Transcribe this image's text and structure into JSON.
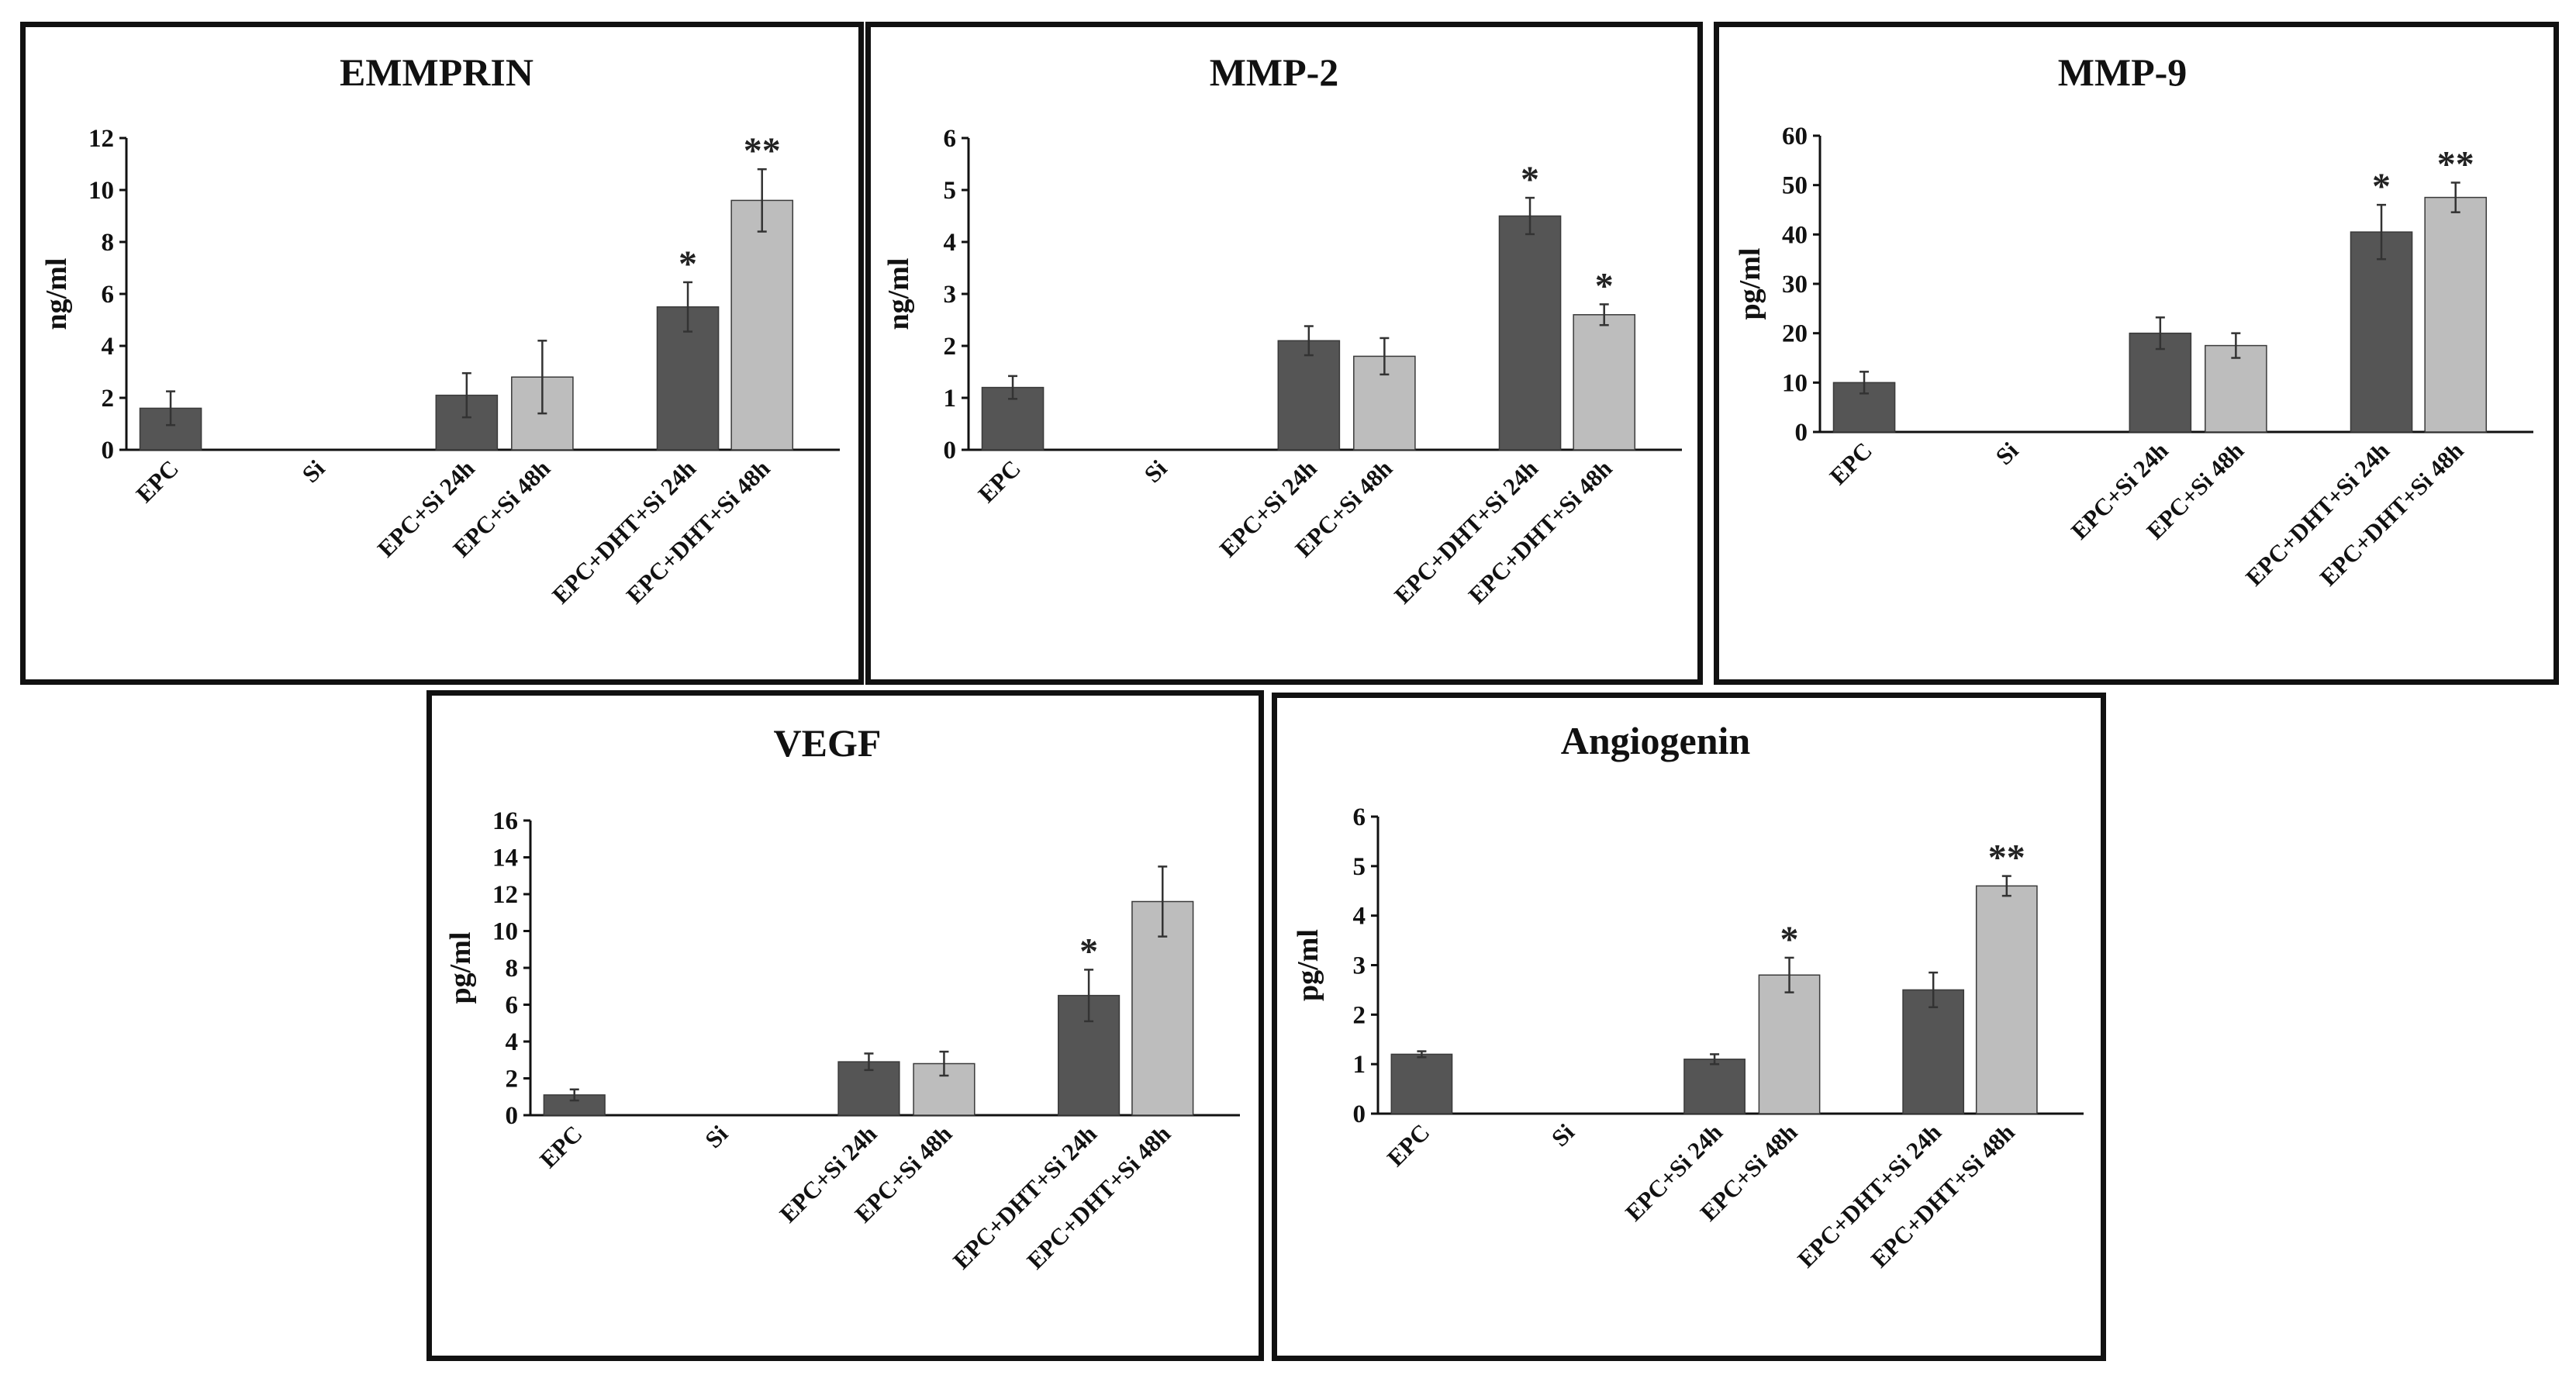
{
  "chart_data": [
    {
      "type": "bar",
      "title": "EMMPRIN",
      "ylabel": "ng/ml",
      "ylim": [
        0,
        12
      ],
      "yticks": [
        0,
        2,
        4,
        6,
        8,
        10,
        12
      ],
      "categories": [
        "EPC",
        "Si",
        "EPC+Si 24h",
        "EPC+Si 48h",
        "EPC+DHT+Si 24h",
        "EPC+DHT+Si 48h"
      ],
      "values": [
        1.6,
        0,
        2.1,
        2.8,
        5.5,
        9.6
      ],
      "errors": [
        0.65,
        0,
        0.85,
        1.4,
        0.95,
        1.2
      ],
      "significance": [
        "",
        "",
        "",
        "",
        "*",
        "**"
      ],
      "colors": [
        "#555555",
        "#555555",
        "#555555",
        "#bdbdbd",
        "#555555",
        "#bdbdbd"
      ]
    },
    {
      "type": "bar",
      "title": "MMP-2",
      "ylabel": "ng/ml",
      "ylim": [
        0,
        6
      ],
      "yticks": [
        0,
        1,
        2,
        3,
        4,
        5,
        6
      ],
      "categories": [
        "EPC",
        "Si",
        "EPC+Si 24h",
        "EPC+Si 48h",
        "EPC+DHT+Si 24h",
        "EPC+DHT+Si 48h"
      ],
      "values": [
        1.2,
        0,
        2.1,
        1.8,
        4.5,
        2.6
      ],
      "errors": [
        0.22,
        0,
        0.28,
        0.35,
        0.35,
        0.2
      ],
      "significance": [
        "",
        "",
        "",
        "",
        "*",
        "*"
      ],
      "colors": [
        "#555555",
        "#555555",
        "#555555",
        "#bdbdbd",
        "#555555",
        "#bdbdbd"
      ]
    },
    {
      "type": "bar",
      "title": "MMP-9",
      "ylabel": "pg/ml",
      "ylim": [
        0,
        60
      ],
      "yticks": [
        0,
        10,
        20,
        30,
        40,
        50,
        60
      ],
      "categories": [
        "EPC",
        "Si",
        "EPC+Si 24h",
        "EPC+Si 48h",
        "EPC+DHT+Si 24h",
        "EPC+DHT+Si 48h"
      ],
      "values": [
        10,
        0,
        20,
        17.5,
        40.5,
        47.5
      ],
      "errors": [
        2.2,
        0,
        3.2,
        2.5,
        5.5,
        3.0
      ],
      "significance": [
        "",
        "",
        "",
        "",
        "*",
        "**"
      ],
      "colors": [
        "#555555",
        "#555555",
        "#555555",
        "#bdbdbd",
        "#555555",
        "#bdbdbd"
      ]
    },
    {
      "type": "bar",
      "title": "VEGF",
      "ylabel": "pg/ml",
      "ylim": [
        0,
        16
      ],
      "yticks": [
        0,
        2,
        4,
        6,
        8,
        10,
        12,
        14,
        16
      ],
      "categories": [
        "EPC",
        "Si",
        "EPC+Si 24h",
        "EPC+Si 48h",
        "EPC+DHT+Si 24h",
        "EPC+DHT+Si 48h"
      ],
      "values": [
        1.1,
        0,
        2.9,
        2.8,
        6.5,
        11.6
      ],
      "errors": [
        0.3,
        0,
        0.45,
        0.65,
        1.4,
        1.9
      ],
      "significance": [
        "",
        "",
        "",
        "",
        "*",
        ""
      ],
      "colors": [
        "#555555",
        "#555555",
        "#555555",
        "#bdbdbd",
        "#555555",
        "#bdbdbd"
      ]
    },
    {
      "type": "bar",
      "title": "Angiogenin",
      "ylabel": "pg/ml",
      "ylim": [
        0,
        6
      ],
      "yticks": [
        0,
        1,
        2,
        3,
        4,
        5,
        6
      ],
      "categories": [
        "EPC",
        "Si",
        "EPC+Si 24h",
        "EPC+Si 48h",
        "EPC+DHT+Si 24h",
        "EPC+DHT+Si 48h"
      ],
      "values": [
        1.2,
        0,
        1.1,
        2.8,
        2.5,
        4.6
      ],
      "errors": [
        0.06,
        0,
        0.1,
        0.35,
        0.35,
        0.2
      ],
      "significance": [
        "",
        "",
        "",
        "*",
        "",
        "**"
      ],
      "colors": [
        "#555555",
        "#555555",
        "#555555",
        "#bdbdbd",
        "#555555",
        "#bdbdbd"
      ]
    }
  ]
}
